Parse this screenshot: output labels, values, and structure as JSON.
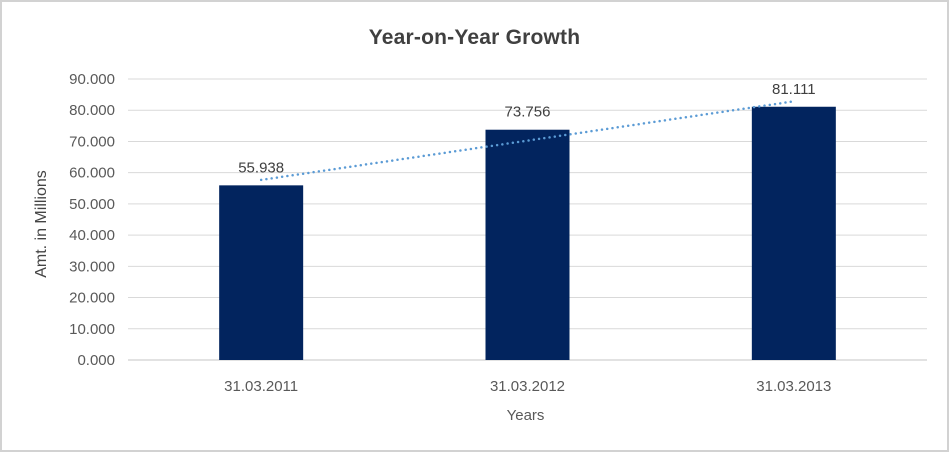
{
  "chart_data": {
    "type": "bar",
    "title": "Year-on-Year Growth",
    "xlabel": "Years",
    "ylabel": "Amt. in Millions",
    "categories": [
      "31.03.2011",
      "31.03.2012",
      "31.03.2013"
    ],
    "values": [
      55.938,
      73.756,
      81.111
    ],
    "value_labels": [
      "55.938",
      "73.756",
      "81.111"
    ],
    "ylim": [
      0,
      90
    ],
    "ytick_step": 10,
    "ytick_labels": [
      "0.000",
      "10.000",
      "20.000",
      "30.000",
      "40.000",
      "50.000",
      "60.000",
      "70.000",
      "80.000",
      "90.000"
    ],
    "grid": true,
    "legend_position": "none",
    "bar_color": "#02245e",
    "gridline_color": "#d9d9d9",
    "axis_line_color": "#c6c6c6",
    "trendline": {
      "type": "linear",
      "style": "dotted",
      "color": "#5b9bd5"
    }
  }
}
